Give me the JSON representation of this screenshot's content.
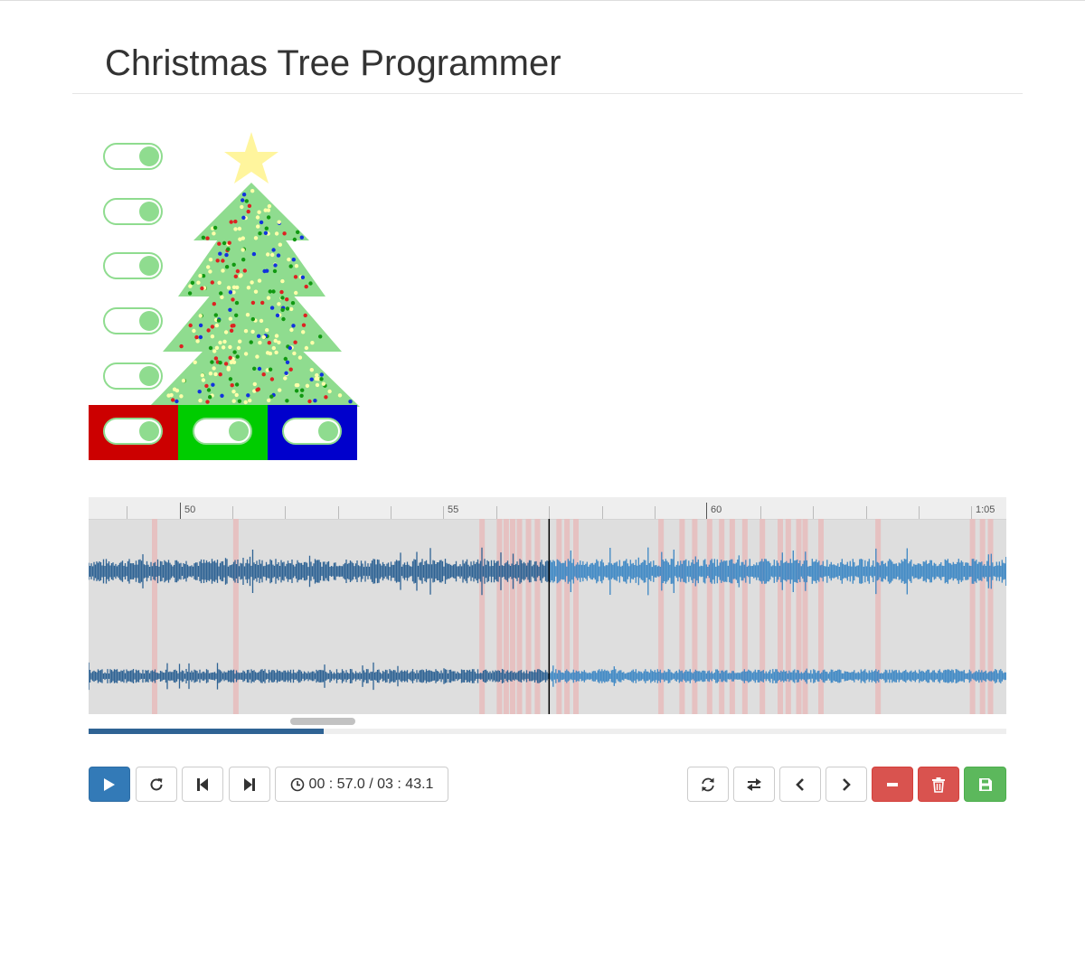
{
  "page": {
    "title": "Christmas Tree Programmer"
  },
  "colors": {
    "toggle_on": "#8fdc8f",
    "tree": "#8fdc8f",
    "star": "#fff59d",
    "red_channel": "#cc0000",
    "green_channel": "#00cc00",
    "blue_channel": "#0000cc",
    "waveform_played": "#2f6394",
    "waveform_unplayed": "#3d87c4",
    "marker": "#e8bcbc",
    "playhead": "#000000"
  },
  "toggles": {
    "tree_sections": [
      {
        "id": "section-1",
        "state": "on"
      },
      {
        "id": "section-2",
        "state": "on"
      },
      {
        "id": "section-3",
        "state": "on"
      },
      {
        "id": "section-4",
        "state": "on"
      },
      {
        "id": "section-5",
        "state": "on"
      }
    ],
    "color_channels": [
      {
        "id": "red",
        "state": "on"
      },
      {
        "id": "green",
        "state": "on"
      },
      {
        "id": "blue",
        "state": "on"
      }
    ]
  },
  "timeline": {
    "labels": [
      "50",
      "55",
      "60",
      "1:05"
    ],
    "view_start_seconds": 48.28,
    "view_end_seconds": 65.66,
    "playhead_seconds": 57.0
  },
  "markers_seconds": [
    49.53,
    51.07,
    55.73,
    56.06,
    56.19,
    56.31,
    56.44,
    56.61,
    56.78,
    57.19,
    57.34,
    57.51,
    59.12,
    59.52,
    59.76,
    60.04,
    60.27,
    60.47,
    60.71,
    61.04,
    61.38,
    61.53,
    61.73,
    61.85,
    62.15,
    63.23,
    65.02,
    65.21,
    65.36
  ],
  "transport": {
    "time": "00 : 57.0 / 03 : 43.1",
    "progress_fraction": 0.256
  },
  "icons": {
    "play": "play-icon",
    "repeat": "redo-icon",
    "skip_back": "skip-back-icon",
    "skip_forward": "skip-forward-icon",
    "clock": "clock-icon",
    "refresh": "refresh-icon",
    "swap": "swap-icon",
    "prev": "chevron-left-icon",
    "next": "chevron-right-icon",
    "remove": "minus-icon",
    "delete": "trash-icon",
    "save": "save-icon"
  }
}
